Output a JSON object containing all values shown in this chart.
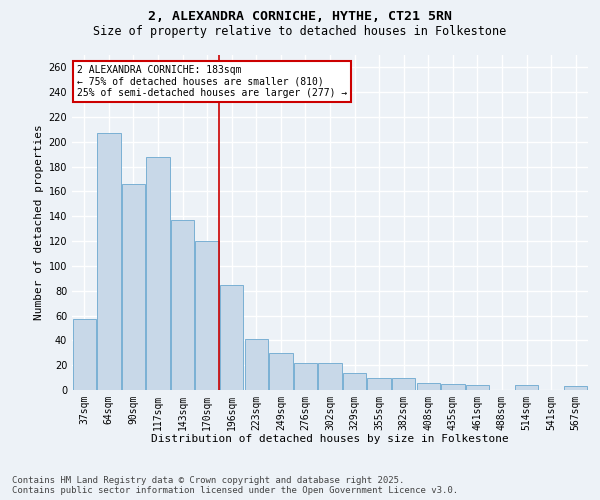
{
  "title": "2, ALEXANDRA CORNICHE, HYTHE, CT21 5RN",
  "subtitle": "Size of property relative to detached houses in Folkestone",
  "xlabel": "Distribution of detached houses by size in Folkestone",
  "ylabel": "Number of detached properties",
  "categories": [
    "37sqm",
    "64sqm",
    "90sqm",
    "117sqm",
    "143sqm",
    "170sqm",
    "196sqm",
    "223sqm",
    "249sqm",
    "276sqm",
    "302sqm",
    "329sqm",
    "355sqm",
    "382sqm",
    "408sqm",
    "435sqm",
    "461sqm",
    "488sqm",
    "514sqm",
    "541sqm",
    "567sqm"
  ],
  "values": [
    57,
    207,
    166,
    188,
    137,
    120,
    85,
    41,
    30,
    22,
    22,
    14,
    10,
    10,
    6,
    5,
    4,
    0,
    4,
    0,
    3
  ],
  "bar_color": "#c8d8e8",
  "bar_edgecolor": "#7ab0d4",
  "marker_line_bin": 5,
  "marker_label": "2 ALEXANDRA CORNICHE: 183sqm",
  "annotation_line1": "← 75% of detached houses are smaller (810)",
  "annotation_line2": "25% of semi-detached houses are larger (277) →",
  "annotation_box_color": "#ffffff",
  "annotation_box_edgecolor": "#cc0000",
  "vline_color": "#cc0000",
  "ylim": [
    0,
    270
  ],
  "yticks": [
    0,
    20,
    40,
    60,
    80,
    100,
    120,
    140,
    160,
    180,
    200,
    220,
    240,
    260
  ],
  "background_color": "#edf2f7",
  "grid_color": "#ffffff",
  "footer": "Contains HM Land Registry data © Crown copyright and database right 2025.\nContains public sector information licensed under the Open Government Licence v3.0.",
  "title_fontsize": 9.5,
  "subtitle_fontsize": 8.5,
  "xlabel_fontsize": 8,
  "ylabel_fontsize": 8,
  "tick_fontsize": 7,
  "annot_fontsize": 7,
  "footer_fontsize": 6.5
}
